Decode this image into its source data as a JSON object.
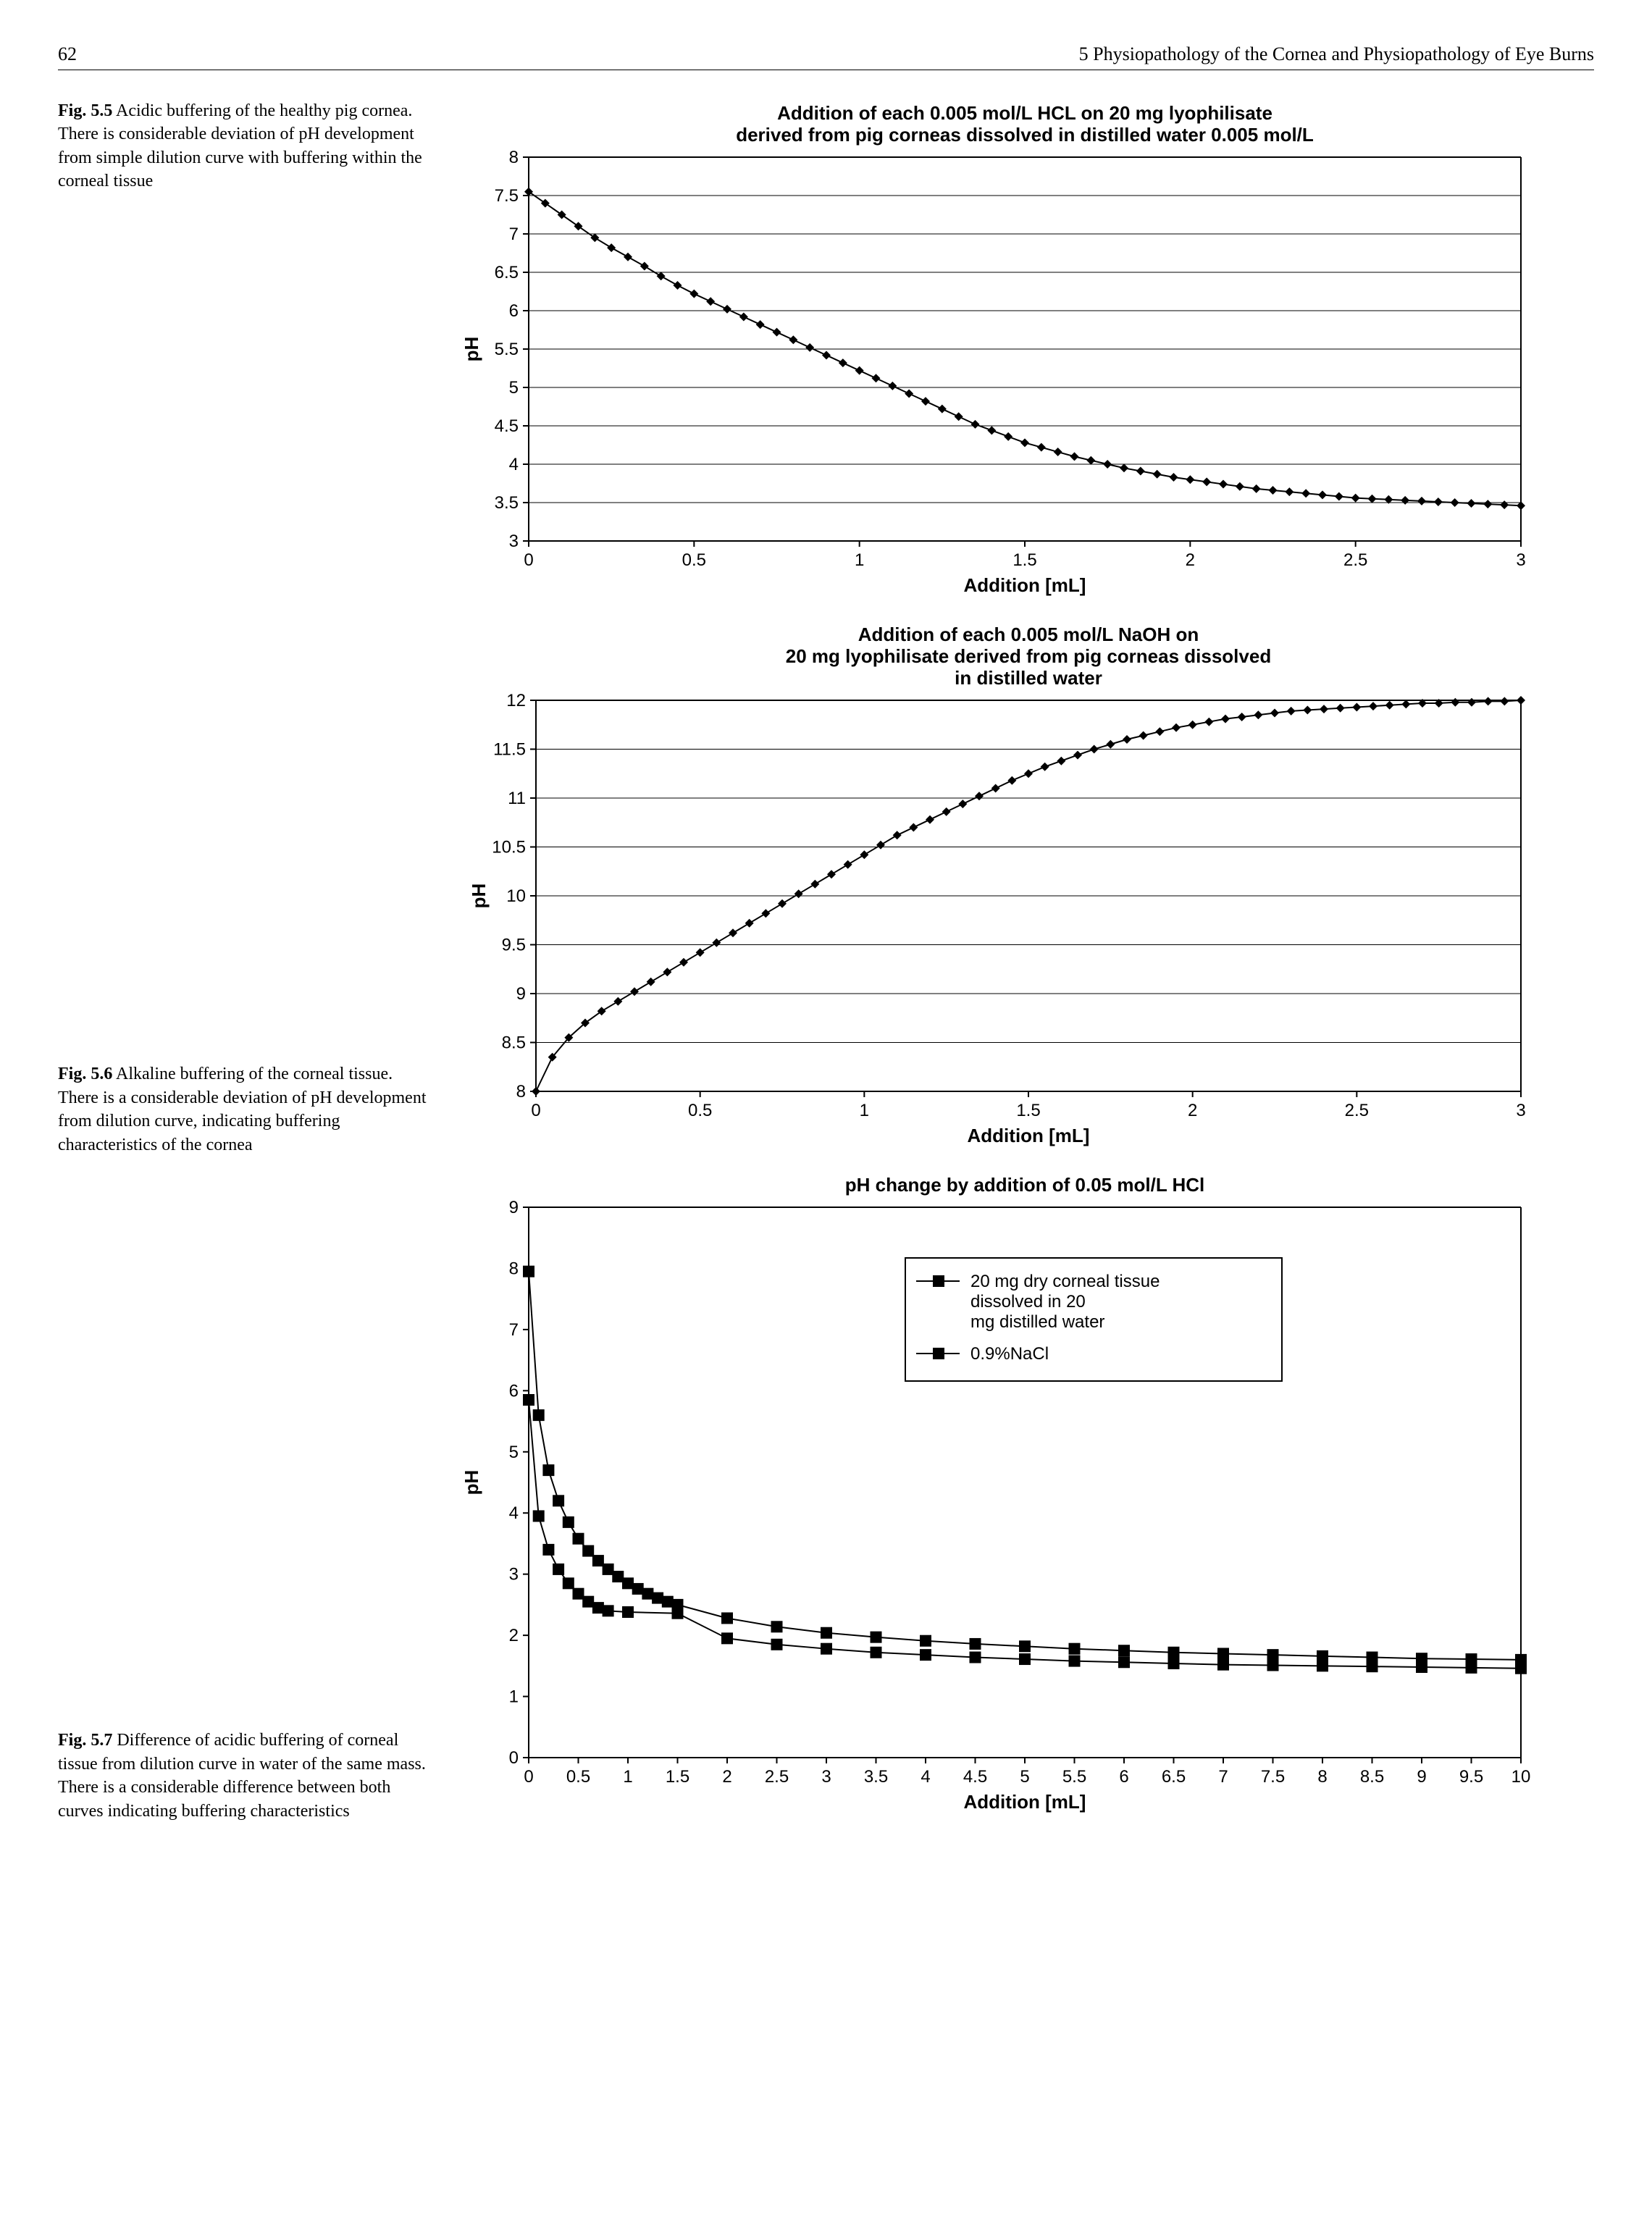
{
  "header": {
    "page_number": "62",
    "chapter": "5    Physiopathology of the Cornea and Physiopathology of Eye Burns"
  },
  "fig55": {
    "label": "Fig. 5.5",
    "caption": "Acidic buffering of the healthy pig cornea. There is considerable deviation of pH development from simple dilution curve with buffering within the corneal tissue",
    "chart": {
      "type": "line",
      "title_line1": "Addition of each 0.005 mol/L HCL on 20 mg lyophilisate",
      "title_line2": "derived from pig corneas dissolved in distilled water 0.005 mol/L",
      "xlabel": "Addition [mL]",
      "ylabel": "pH",
      "xlim": [
        0,
        3
      ],
      "ylim": [
        3,
        8
      ],
      "xticks": [
        0,
        0.5,
        1,
        1.5,
        2,
        2.5,
        3
      ],
      "yticks": [
        3,
        3.5,
        4,
        4.5,
        5,
        5.5,
        6,
        6.5,
        7,
        7.5,
        8
      ],
      "line_color": "#000000",
      "marker": "diamond",
      "marker_size": 6,
      "line_width": 2,
      "grid_color": "#000000",
      "background": "#ffffff",
      "data": [
        [
          0.0,
          7.55
        ],
        [
          0.05,
          7.4
        ],
        [
          0.1,
          7.25
        ],
        [
          0.15,
          7.1
        ],
        [
          0.2,
          6.95
        ],
        [
          0.25,
          6.82
        ],
        [
          0.3,
          6.7
        ],
        [
          0.35,
          6.58
        ],
        [
          0.4,
          6.45
        ],
        [
          0.45,
          6.33
        ],
        [
          0.5,
          6.22
        ],
        [
          0.55,
          6.12
        ],
        [
          0.6,
          6.02
        ],
        [
          0.65,
          5.92
        ],
        [
          0.7,
          5.82
        ],
        [
          0.75,
          5.72
        ],
        [
          0.8,
          5.62
        ],
        [
          0.85,
          5.52
        ],
        [
          0.9,
          5.42
        ],
        [
          0.95,
          5.32
        ],
        [
          1.0,
          5.22
        ],
        [
          1.05,
          5.12
        ],
        [
          1.1,
          5.02
        ],
        [
          1.15,
          4.92
        ],
        [
          1.2,
          4.82
        ],
        [
          1.25,
          4.72
        ],
        [
          1.3,
          4.62
        ],
        [
          1.35,
          4.52
        ],
        [
          1.4,
          4.44
        ],
        [
          1.45,
          4.36
        ],
        [
          1.5,
          4.28
        ],
        [
          1.55,
          4.22
        ],
        [
          1.6,
          4.16
        ],
        [
          1.65,
          4.1
        ],
        [
          1.7,
          4.05
        ],
        [
          1.75,
          4.0
        ],
        [
          1.8,
          3.95
        ],
        [
          1.85,
          3.91
        ],
        [
          1.9,
          3.87
        ],
        [
          1.95,
          3.83
        ],
        [
          2.0,
          3.8
        ],
        [
          2.05,
          3.77
        ],
        [
          2.1,
          3.74
        ],
        [
          2.15,
          3.71
        ],
        [
          2.2,
          3.68
        ],
        [
          2.25,
          3.66
        ],
        [
          2.3,
          3.64
        ],
        [
          2.35,
          3.62
        ],
        [
          2.4,
          3.6
        ],
        [
          2.45,
          3.58
        ],
        [
          2.5,
          3.56
        ],
        [
          2.55,
          3.55
        ],
        [
          2.6,
          3.54
        ],
        [
          2.65,
          3.53
        ],
        [
          2.7,
          3.52
        ],
        [
          2.75,
          3.51
        ],
        [
          2.8,
          3.5
        ],
        [
          2.85,
          3.49
        ],
        [
          2.9,
          3.48
        ],
        [
          2.95,
          3.47
        ],
        [
          3.0,
          3.46
        ]
      ]
    }
  },
  "fig56": {
    "label": "Fig. 5.6",
    "caption": "Alkaline buffering of the corneal tissue. There is a considerable deviation of pH development from dilution curve, indicating buffering characteristics of the cornea",
    "chart": {
      "type": "line",
      "title_line1": "Addition of each 0.005 mol/L NaOH on",
      "title_line2": "20 mg lyophilisate derived from pig corneas dissolved",
      "title_line3": "in distilled water",
      "xlabel": "Addition [mL]",
      "ylabel": "pH",
      "xlim": [
        0,
        3
      ],
      "ylim": [
        8,
        12
      ],
      "xticks": [
        0,
        0.5,
        1,
        1.5,
        2,
        2.5,
        3
      ],
      "yticks": [
        8,
        8.5,
        9,
        9.5,
        10,
        10.5,
        11,
        11.5,
        12
      ],
      "line_color": "#000000",
      "marker": "diamond",
      "marker_size": 6,
      "line_width": 2,
      "grid_color": "#000000",
      "background": "#ffffff",
      "data": [
        [
          0.0,
          8.0
        ],
        [
          0.05,
          8.35
        ],
        [
          0.1,
          8.55
        ],
        [
          0.15,
          8.7
        ],
        [
          0.2,
          8.82
        ],
        [
          0.25,
          8.92
        ],
        [
          0.3,
          9.02
        ],
        [
          0.35,
          9.12
        ],
        [
          0.4,
          9.22
        ],
        [
          0.45,
          9.32
        ],
        [
          0.5,
          9.42
        ],
        [
          0.55,
          9.52
        ],
        [
          0.6,
          9.62
        ],
        [
          0.65,
          9.72
        ],
        [
          0.7,
          9.82
        ],
        [
          0.75,
          9.92
        ],
        [
          0.8,
          10.02
        ],
        [
          0.85,
          10.12
        ],
        [
          0.9,
          10.22
        ],
        [
          0.95,
          10.32
        ],
        [
          1.0,
          10.42
        ],
        [
          1.05,
          10.52
        ],
        [
          1.1,
          10.62
        ],
        [
          1.15,
          10.7
        ],
        [
          1.2,
          10.78
        ],
        [
          1.25,
          10.86
        ],
        [
          1.3,
          10.94
        ],
        [
          1.35,
          11.02
        ],
        [
          1.4,
          11.1
        ],
        [
          1.45,
          11.18
        ],
        [
          1.5,
          11.25
        ],
        [
          1.55,
          11.32
        ],
        [
          1.6,
          11.38
        ],
        [
          1.65,
          11.44
        ],
        [
          1.7,
          11.5
        ],
        [
          1.75,
          11.55
        ],
        [
          1.8,
          11.6
        ],
        [
          1.85,
          11.64
        ],
        [
          1.9,
          11.68
        ],
        [
          1.95,
          11.72
        ],
        [
          2.0,
          11.75
        ],
        [
          2.05,
          11.78
        ],
        [
          2.1,
          11.81
        ],
        [
          2.15,
          11.83
        ],
        [
          2.2,
          11.85
        ],
        [
          2.25,
          11.87
        ],
        [
          2.3,
          11.89
        ],
        [
          2.35,
          11.9
        ],
        [
          2.4,
          11.91
        ],
        [
          2.45,
          11.92
        ],
        [
          2.5,
          11.93
        ],
        [
          2.55,
          11.94
        ],
        [
          2.6,
          11.95
        ],
        [
          2.65,
          11.96
        ],
        [
          2.7,
          11.97
        ],
        [
          2.75,
          11.97
        ],
        [
          2.8,
          11.98
        ],
        [
          2.85,
          11.98
        ],
        [
          2.9,
          11.99
        ],
        [
          2.95,
          11.99
        ],
        [
          3.0,
          12.0
        ]
      ]
    }
  },
  "fig57": {
    "label": "Fig. 5.7",
    "caption": "Difference of acidic buffering of corneal tissue from dilution curve in water of the same mass. There is a considerable difference between both curves indicating buffering characteristics",
    "chart": {
      "type": "line",
      "title": "pH change by addition of 0.05 mol/L HCl",
      "xlabel": "Addition [mL]",
      "ylabel": "pH",
      "xlim": [
        0,
        10
      ],
      "ylim": [
        0,
        9
      ],
      "xticks": [
        0,
        0.5,
        1,
        1.5,
        2,
        2.5,
        3,
        3.5,
        4,
        4.5,
        5,
        5.5,
        6,
        6.5,
        7,
        7.5,
        8,
        8.5,
        9,
        9.5,
        10
      ],
      "yticks": [
        0,
        1,
        2,
        3,
        4,
        5,
        6,
        7,
        8,
        9
      ],
      "line_color": "#000000",
      "marker": "square",
      "marker_size": 8,
      "line_width": 2,
      "grid_color": "none",
      "background": "#ffffff",
      "legend": {
        "entries": [
          {
            "marker": "square",
            "label": "20 mg dry corneal tissue dissolved in 20 mg distilled water"
          },
          {
            "marker": "square",
            "label": "0.9%NaCl"
          }
        ],
        "border_color": "#000000"
      },
      "series": [
        {
          "name": "corneal",
          "data": [
            [
              0.0,
              7.95
            ],
            [
              0.1,
              5.6
            ],
            [
              0.2,
              4.7
            ],
            [
              0.3,
              4.2
            ],
            [
              0.4,
              3.85
            ],
            [
              0.5,
              3.58
            ],
            [
              0.6,
              3.38
            ],
            [
              0.7,
              3.22
            ],
            [
              0.8,
              3.08
            ],
            [
              0.9,
              2.96
            ],
            [
              1.0,
              2.85
            ],
            [
              1.1,
              2.76
            ],
            [
              1.2,
              2.68
            ],
            [
              1.3,
              2.61
            ],
            [
              1.4,
              2.55
            ],
            [
              1.5,
              2.5
            ],
            [
              2.0,
              2.28
            ],
            [
              2.5,
              2.14
            ],
            [
              3.0,
              2.04
            ],
            [
              3.5,
              1.97
            ],
            [
              4.0,
              1.91
            ],
            [
              4.5,
              1.86
            ],
            [
              5.0,
              1.82
            ],
            [
              5.5,
              1.78
            ],
            [
              6.0,
              1.75
            ],
            [
              6.5,
              1.72
            ],
            [
              7.0,
              1.7
            ],
            [
              7.5,
              1.68
            ],
            [
              8.0,
              1.66
            ],
            [
              8.5,
              1.64
            ],
            [
              9.0,
              1.62
            ],
            [
              9.5,
              1.61
            ],
            [
              10.0,
              1.6
            ]
          ]
        },
        {
          "name": "nacl",
          "data": [
            [
              0.0,
              5.85
            ],
            [
              0.1,
              3.95
            ],
            [
              0.2,
              3.4
            ],
            [
              0.3,
              3.08
            ],
            [
              0.4,
              2.85
            ],
            [
              0.5,
              2.68
            ],
            [
              0.6,
              2.55
            ],
            [
              0.7,
              2.45
            ],
            [
              0.8,
              2.4
            ],
            [
              1.0,
              2.38
            ],
            [
              1.5,
              2.36
            ],
            [
              2.0,
              1.95
            ],
            [
              2.5,
              1.85
            ],
            [
              3.0,
              1.78
            ],
            [
              3.5,
              1.72
            ],
            [
              4.0,
              1.68
            ],
            [
              4.5,
              1.64
            ],
            [
              5.0,
              1.61
            ],
            [
              5.5,
              1.58
            ],
            [
              6.0,
              1.56
            ],
            [
              6.5,
              1.54
            ],
            [
              7.0,
              1.52
            ],
            [
              7.5,
              1.51
            ],
            [
              8.0,
              1.5
            ],
            [
              8.5,
              1.49
            ],
            [
              9.0,
              1.48
            ],
            [
              9.5,
              1.47
            ],
            [
              10.0,
              1.46
            ]
          ]
        }
      ]
    }
  }
}
